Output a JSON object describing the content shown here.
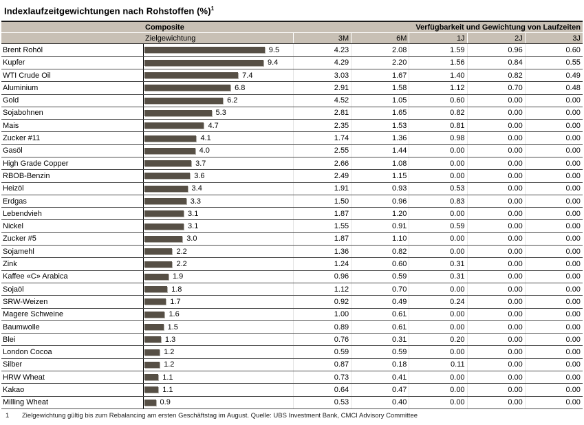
{
  "title": "Indexlaufzeitgewichtungen nach Rohstoffen (%)",
  "title_footnote_marker": "1",
  "header": {
    "composite_label": "Composite",
    "target_weight_label": "Zielgewichtung",
    "availability_group_label": "Verfügbarkeit und Gewichtung von Laufzeiten",
    "maturity_columns": [
      "3M",
      "6M",
      "1J",
      "2J",
      "3J"
    ]
  },
  "colors": {
    "bar": "#564f45",
    "header_bg": "#c8c0b5"
  },
  "rows": [
    {
      "name": "Brent Rohöl",
      "weight": "9.5",
      "values": [
        "4.23",
        "2.08",
        "1.59",
        "0.96",
        "0.60"
      ]
    },
    {
      "name": "Kupfer",
      "weight": "9.4",
      "values": [
        "4.29",
        "2.20",
        "1.56",
        "0.84",
        "0.55"
      ]
    },
    {
      "name": "WTI Crude Oil",
      "weight": "7.4",
      "values": [
        "3.03",
        "1.67",
        "1.40",
        "0.82",
        "0.49"
      ]
    },
    {
      "name": "Aluminium",
      "weight": "6.8",
      "values": [
        "2.91",
        "1.58",
        "1.12",
        "0.70",
        "0.48"
      ]
    },
    {
      "name": "Gold",
      "weight": "6.2",
      "values": [
        "4.52",
        "1.05",
        "0.60",
        "0.00",
        "0.00"
      ]
    },
    {
      "name": "Sojabohnen",
      "weight": "5.3",
      "values": [
        "2.81",
        "1.65",
        "0.82",
        "0.00",
        "0.00"
      ]
    },
    {
      "name": "Mais",
      "weight": "4.7",
      "values": [
        "2.35",
        "1.53",
        "0.81",
        "0.00",
        "0.00"
      ]
    },
    {
      "name": "Zucker #11",
      "weight": "4.1",
      "values": [
        "1.74",
        "1.36",
        "0.98",
        "0.00",
        "0.00"
      ]
    },
    {
      "name": "Gasöl",
      "weight": "4.0",
      "values": [
        "2.55",
        "1.44",
        "0.00",
        "0.00",
        "0.00"
      ]
    },
    {
      "name": "High Grade Copper",
      "weight": "3.7",
      "values": [
        "2.66",
        "1.08",
        "0.00",
        "0.00",
        "0.00"
      ]
    },
    {
      "name": "RBOB-Benzin",
      "weight": "3.6",
      "values": [
        "2.49",
        "1.15",
        "0.00",
        "0.00",
        "0.00"
      ]
    },
    {
      "name": "Heizöl",
      "weight": "3.4",
      "values": [
        "1.91",
        "0.93",
        "0.53",
        "0.00",
        "0.00"
      ]
    },
    {
      "name": "Erdgas",
      "weight": "3.3",
      "values": [
        "1.50",
        "0.96",
        "0.83",
        "0.00",
        "0.00"
      ]
    },
    {
      "name": "Lebendvieh",
      "weight": "3.1",
      "values": [
        "1.87",
        "1.20",
        "0.00",
        "0.00",
        "0.00"
      ]
    },
    {
      "name": "Nickel",
      "weight": "3.1",
      "values": [
        "1.55",
        "0.91",
        "0.59",
        "0.00",
        "0.00"
      ]
    },
    {
      "name": "Zucker #5",
      "weight": "3.0",
      "values": [
        "1.87",
        "1.10",
        "0.00",
        "0.00",
        "0.00"
      ]
    },
    {
      "name": "Sojamehl",
      "weight": "2.2",
      "values": [
        "1.36",
        "0.82",
        "0.00",
        "0.00",
        "0.00"
      ]
    },
    {
      "name": "Zink",
      "weight": "2.2",
      "values": [
        "1.24",
        "0.60",
        "0.31",
        "0.00",
        "0.00"
      ]
    },
    {
      "name": "Kaffee «C» Arabica",
      "weight": "1.9",
      "values": [
        "0.96",
        "0.59",
        "0.31",
        "0.00",
        "0.00"
      ]
    },
    {
      "name": "Sojaöl",
      "weight": "1.8",
      "values": [
        "1.12",
        "0.70",
        "0.00",
        "0.00",
        "0.00"
      ]
    },
    {
      "name": "SRW-Weizen",
      "weight": "1.7",
      "values": [
        "0.92",
        "0.49",
        "0.24",
        "0.00",
        "0.00"
      ]
    },
    {
      "name": "Magere Schweine",
      "weight": "1.6",
      "values": [
        "1.00",
        "0.61",
        "0.00",
        "0.00",
        "0.00"
      ]
    },
    {
      "name": "Baumwolle",
      "weight": "1.5",
      "values": [
        "0.89",
        "0.61",
        "0.00",
        "0.00",
        "0.00"
      ]
    },
    {
      "name": "Blei",
      "weight": "1.3",
      "values": [
        "0.76",
        "0.31",
        "0.20",
        "0.00",
        "0.00"
      ]
    },
    {
      "name": "London Cocoa",
      "weight": "1.2",
      "values": [
        "0.59",
        "0.59",
        "0.00",
        "0.00",
        "0.00"
      ]
    },
    {
      "name": "Silber",
      "weight": "1.2",
      "values": [
        "0.87",
        "0.18",
        "0.11",
        "0.00",
        "0.00"
      ]
    },
    {
      "name": "HRW Wheat",
      "weight": "1.1",
      "values": [
        "0.73",
        "0.41",
        "0.00",
        "0.00",
        "0.00"
      ]
    },
    {
      "name": "Kakao",
      "weight": "1.1",
      "values": [
        "0.64",
        "0.47",
        "0.00",
        "0.00",
        "0.00"
      ]
    },
    {
      "name": "Milling Wheat",
      "weight": "0.9",
      "values": [
        "0.53",
        "0.40",
        "0.00",
        "0.00",
        "0.00"
      ]
    }
  ],
  "footnote": {
    "marker": "1",
    "text": "Zielgewichtung gültig bis zum Rebalancing am ersten Geschäftstag im August. Quelle: UBS Investment Bank, CMCI Advisory Committee"
  },
  "chart_data": {
    "type": "bar",
    "orientation": "horizontal",
    "title": "Indexlaufzeitgewichtungen nach Rohstoffen (%)",
    "xlabel": "",
    "ylabel": "",
    "xlim": [
      0,
      10
    ],
    "grid": false,
    "legend_position": "none",
    "categories": [
      "Brent Rohöl",
      "Kupfer",
      "WTI Crude Oil",
      "Aluminium",
      "Gold",
      "Sojabohnen",
      "Mais",
      "Zucker #11",
      "Gasöl",
      "High Grade Copper",
      "RBOB-Benzin",
      "Heizöl",
      "Erdgas",
      "Lebendvieh",
      "Nickel",
      "Zucker #5",
      "Sojamehl",
      "Zink",
      "Kaffee «C» Arabica",
      "Sojaöl",
      "SRW-Weizen",
      "Magere Schweine",
      "Baumwolle",
      "Blei",
      "London Cocoa",
      "Silber",
      "HRW Wheat",
      "Kakao",
      "Milling Wheat"
    ],
    "series": [
      {
        "name": "Composite Zielgewichtung",
        "values": [
          9.5,
          9.4,
          7.4,
          6.8,
          6.2,
          5.3,
          4.7,
          4.1,
          4.0,
          3.7,
          3.6,
          3.4,
          3.3,
          3.1,
          3.1,
          3.0,
          2.2,
          2.2,
          1.9,
          1.8,
          1.7,
          1.6,
          1.5,
          1.3,
          1.2,
          1.2,
          1.1,
          1.1,
          0.9
        ]
      },
      {
        "name": "3M",
        "values": [
          4.23,
          4.29,
          3.03,
          2.91,
          4.52,
          2.81,
          2.35,
          1.74,
          2.55,
          2.66,
          2.49,
          1.91,
          1.5,
          1.87,
          1.55,
          1.87,
          1.36,
          1.24,
          0.96,
          1.12,
          0.92,
          1.0,
          0.89,
          0.76,
          0.59,
          0.87,
          0.73,
          0.64,
          0.53
        ]
      },
      {
        "name": "6M",
        "values": [
          2.08,
          2.2,
          1.67,
          1.58,
          1.05,
          1.65,
          1.53,
          1.36,
          1.44,
          1.08,
          1.15,
          0.93,
          0.96,
          1.2,
          0.91,
          1.1,
          0.82,
          0.6,
          0.59,
          0.7,
          0.49,
          0.61,
          0.61,
          0.31,
          0.59,
          0.18,
          0.41,
          0.47,
          0.4
        ]
      },
      {
        "name": "1J",
        "values": [
          1.59,
          1.56,
          1.4,
          1.12,
          0.6,
          0.82,
          0.81,
          0.98,
          0.0,
          0.0,
          0.0,
          0.53,
          0.83,
          0.0,
          0.59,
          0.0,
          0.0,
          0.31,
          0.31,
          0.0,
          0.24,
          0.0,
          0.0,
          0.2,
          0.0,
          0.11,
          0.0,
          0.0,
          0.0
        ]
      },
      {
        "name": "2J",
        "values": [
          0.96,
          0.84,
          0.82,
          0.7,
          0.0,
          0.0,
          0.0,
          0.0,
          0.0,
          0.0,
          0.0,
          0.0,
          0.0,
          0.0,
          0.0,
          0.0,
          0.0,
          0.0,
          0.0,
          0.0,
          0.0,
          0.0,
          0.0,
          0.0,
          0.0,
          0.0,
          0.0,
          0.0,
          0.0
        ]
      },
      {
        "name": "3J",
        "values": [
          0.6,
          0.55,
          0.49,
          0.48,
          0.0,
          0.0,
          0.0,
          0.0,
          0.0,
          0.0,
          0.0,
          0.0,
          0.0,
          0.0,
          0.0,
          0.0,
          0.0,
          0.0,
          0.0,
          0.0,
          0.0,
          0.0,
          0.0,
          0.0,
          0.0,
          0.0,
          0.0,
          0.0,
          0.0
        ]
      }
    ]
  }
}
